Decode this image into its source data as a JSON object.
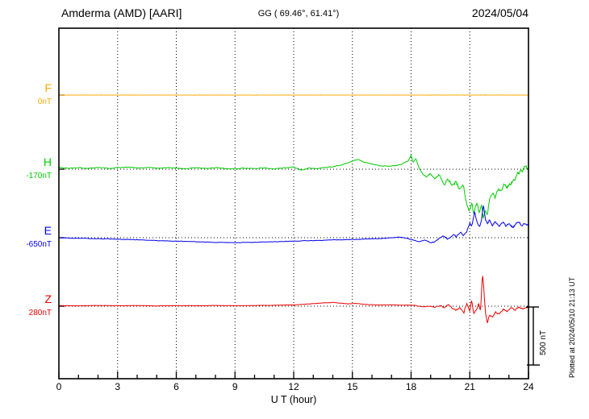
{
  "header": {
    "station": "Amderma (AMD)  [AARI]",
    "coordinates": "GG ( 69.46°, 61.41°)",
    "date": "2024/05/04"
  },
  "side_note": "Plotted at 2024/05/10 21:13 UT",
  "chart_data": {
    "type": "line",
    "title": "Amderma (AMD) [AARI] magnetogram 2024/05/04",
    "xlabel": "U T (hour)",
    "x_range": [
      0,
      24
    ],
    "x_major_ticks": [
      0,
      3,
      6,
      9,
      12,
      15,
      18,
      21,
      24
    ],
    "x_minor_step": 1,
    "grid": "dotted",
    "unit": "nT",
    "scale_bar": {
      "label": "500 nT",
      "nT": 500
    },
    "series": [
      {
        "name": "F",
        "baseline_label": "0nT",
        "color": "#ffaa00",
        "noise_amp": [
          0.7,
          1.2
        ],
        "points": [
          [
            0,
            0
          ],
          [
            24,
            0
          ]
        ]
      },
      {
        "name": "H",
        "baseline_label": "-170nT",
        "color": "#00cc00",
        "noise_amp": [
          5,
          30
        ],
        "points": [
          [
            0,
            15
          ],
          [
            0.5,
            8
          ],
          [
            1,
            14
          ],
          [
            1.5,
            6
          ],
          [
            2,
            16
          ],
          [
            2.5,
            8
          ],
          [
            3,
            12
          ],
          [
            3.5,
            18
          ],
          [
            4,
            10
          ],
          [
            4.5,
            16
          ],
          [
            5,
            8
          ],
          [
            5.5,
            14
          ],
          [
            6,
            10
          ],
          [
            6.5,
            4
          ],
          [
            7,
            12
          ],
          [
            7.5,
            6
          ],
          [
            8,
            14
          ],
          [
            8.5,
            8
          ],
          [
            9,
            2
          ],
          [
            9.5,
            10
          ],
          [
            10,
            6
          ],
          [
            10.5,
            12
          ],
          [
            11,
            4
          ],
          [
            11.5,
            10
          ],
          [
            12,
            18
          ],
          [
            12.4,
            -8
          ],
          [
            12.8,
            10
          ],
          [
            13.2,
            4
          ],
          [
            13.6,
            14
          ],
          [
            14,
            20
          ],
          [
            14.5,
            40
          ],
          [
            15,
            70
          ],
          [
            15.3,
            85
          ],
          [
            15.6,
            60
          ],
          [
            16,
            45
          ],
          [
            16.4,
            30
          ],
          [
            16.8,
            25
          ],
          [
            17.2,
            30
          ],
          [
            17.6,
            50
          ],
          [
            17.85,
            70
          ],
          [
            18,
            120
          ],
          [
            18.1,
            60
          ],
          [
            18.25,
            90
          ],
          [
            18.4,
            10
          ],
          [
            18.6,
            -40
          ],
          [
            18.8,
            -70
          ],
          [
            19,
            -35
          ],
          [
            19.2,
            -80
          ],
          [
            19.45,
            -50
          ],
          [
            19.7,
            -120
          ],
          [
            19.9,
            -80
          ],
          [
            20.1,
            -140
          ],
          [
            20.3,
            -100
          ],
          [
            20.5,
            -190
          ],
          [
            20.65,
            -140
          ],
          [
            20.8,
            -260
          ],
          [
            20.95,
            -360
          ],
          [
            21.1,
            -300
          ],
          [
            21.2,
            -400
          ],
          [
            21.35,
            -300
          ],
          [
            21.5,
            -380
          ],
          [
            21.6,
            -300
          ],
          [
            21.7,
            -420
          ],
          [
            21.8,
            -340
          ],
          [
            21.9,
            -400
          ],
          [
            22,
            -280
          ],
          [
            22.15,
            -200
          ],
          [
            22.3,
            -240
          ],
          [
            22.45,
            -160
          ],
          [
            22.6,
            -190
          ],
          [
            22.75,
            -130
          ],
          [
            22.9,
            -160
          ],
          [
            23.1,
            -120
          ],
          [
            23.3,
            -80
          ],
          [
            23.5,
            -40
          ],
          [
            23.7,
            -5
          ],
          [
            23.85,
            35
          ],
          [
            24,
            -15
          ]
        ]
      },
      {
        "name": "E",
        "baseline_label": "-650nT",
        "color": "#0000ee",
        "noise_amp": [
          3,
          16
        ],
        "points": [
          [
            0,
            0
          ],
          [
            1,
            -5
          ],
          [
            2,
            -8
          ],
          [
            3,
            -12
          ],
          [
            4,
            -18
          ],
          [
            5,
            -25
          ],
          [
            6,
            -30
          ],
          [
            7,
            -35
          ],
          [
            8,
            -40
          ],
          [
            9,
            -42
          ],
          [
            10,
            -40
          ],
          [
            11,
            -35
          ],
          [
            12,
            -30
          ],
          [
            13,
            -25
          ],
          [
            14,
            -20
          ],
          [
            15,
            -15
          ],
          [
            16,
            -10
          ],
          [
            17,
            -2
          ],
          [
            17.4,
            5
          ],
          [
            17.8,
            -5
          ],
          [
            18.1,
            -20
          ],
          [
            18.4,
            -35
          ],
          [
            18.7,
            -20
          ],
          [
            19,
            -45
          ],
          [
            19.3,
            -25
          ],
          [
            19.6,
            10
          ],
          [
            19.9,
            -10
          ],
          [
            20.1,
            25
          ],
          [
            20.3,
            10
          ],
          [
            20.5,
            45
          ],
          [
            20.7,
            25
          ],
          [
            20.85,
            60
          ],
          [
            21,
            130
          ],
          [
            21.1,
            90
          ],
          [
            21.25,
            230
          ],
          [
            21.35,
            140
          ],
          [
            21.5,
            100
          ],
          [
            21.6,
            160
          ],
          [
            21.7,
            280
          ],
          [
            21.8,
            150
          ],
          [
            21.9,
            120
          ],
          [
            22,
            160
          ],
          [
            22.15,
            110
          ],
          [
            22.3,
            140
          ],
          [
            22.5,
            100
          ],
          [
            22.7,
            130
          ],
          [
            22.85,
            95
          ],
          [
            23,
            120
          ],
          [
            23.2,
            90
          ],
          [
            23.35,
            115
          ],
          [
            23.5,
            140
          ],
          [
            23.65,
            105
          ],
          [
            23.8,
            125
          ],
          [
            24,
            105
          ]
        ]
      },
      {
        "name": "Z",
        "baseline_label": "280nT",
        "color": "#ee0000",
        "noise_amp": [
          2,
          13
        ],
        "points": [
          [
            0,
            5
          ],
          [
            1,
            3
          ],
          [
            2,
            6
          ],
          [
            3,
            4
          ],
          [
            4,
            6
          ],
          [
            5,
            3
          ],
          [
            6,
            5
          ],
          [
            7,
            4
          ],
          [
            8,
            6
          ],
          [
            9,
            4
          ],
          [
            10,
            6
          ],
          [
            11,
            8
          ],
          [
            12,
            12
          ],
          [
            12.5,
            16
          ],
          [
            13,
            22
          ],
          [
            13.5,
            28
          ],
          [
            14,
            32
          ],
          [
            14.4,
            26
          ],
          [
            14.8,
            20
          ],
          [
            15.2,
            24
          ],
          [
            15.6,
            16
          ],
          [
            16,
            12
          ],
          [
            16.5,
            10
          ],
          [
            17,
            12
          ],
          [
            17.5,
            8
          ],
          [
            18,
            10
          ],
          [
            18.3,
            4
          ],
          [
            18.6,
            -6
          ],
          [
            18.9,
            2
          ],
          [
            19.2,
            -10
          ],
          [
            19.5,
            6
          ],
          [
            19.7,
            -15
          ],
          [
            19.9,
            15
          ],
          [
            20.1,
            -20
          ],
          [
            20.3,
            -40
          ],
          [
            20.5,
            -15
          ],
          [
            20.7,
            -50
          ],
          [
            20.85,
            25
          ],
          [
            21,
            -40
          ],
          [
            21.1,
            50
          ],
          [
            21.2,
            -70
          ],
          [
            21.35,
            -30
          ],
          [
            21.45,
            20
          ],
          [
            21.55,
            -40
          ],
          [
            21.65,
            280
          ],
          [
            21.72,
            150
          ],
          [
            21.8,
            -60
          ],
          [
            21.9,
            -140
          ],
          [
            22,
            -70
          ],
          [
            22.15,
            -100
          ],
          [
            22.3,
            -45
          ],
          [
            22.5,
            -70
          ],
          [
            22.7,
            -25
          ],
          [
            22.9,
            -45
          ],
          [
            23.1,
            -15
          ],
          [
            23.3,
            -30
          ],
          [
            23.5,
            -10
          ],
          [
            23.7,
            -20
          ],
          [
            23.85,
            -8
          ],
          [
            24,
            -12
          ]
        ]
      }
    ]
  }
}
